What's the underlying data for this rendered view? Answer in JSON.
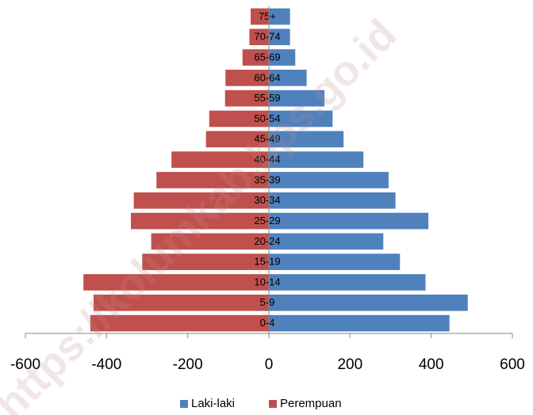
{
  "chart_data": {
    "type": "bar",
    "orientation": "horizontal",
    "stacked": true,
    "categories": [
      "0-4",
      "5-9",
      "10-14",
      "15-19",
      "20-24",
      "25-29",
      "30-34",
      "35-39",
      "40-44",
      "45-49",
      "50-54",
      "55-59",
      "60-64",
      "65-69",
      "70-74",
      "75+"
    ],
    "series": [
      {
        "name": "Laki-laki",
        "color": "#4f81bd",
        "values": [
          445,
          490,
          386,
          323,
          282,
          393,
          312,
          295,
          233,
          184,
          157,
          137,
          93,
          65,
          52,
          52
        ]
      },
      {
        "name": "Perempuan",
        "color": "#c0504d",
        "values": [
          -440,
          -432,
          -457,
          -312,
          -290,
          -340,
          -333,
          -277,
          -240,
          -155,
          -147,
          -108,
          -107,
          -65,
          -48,
          -45
        ]
      }
    ],
    "xlim": [
      -600,
      600
    ],
    "xticks": [
      -600,
      -400,
      -200,
      0,
      200,
      400,
      600
    ],
    "title": "",
    "xlabel": "",
    "ylabel": "",
    "grid": false,
    "legend_position": "bottom",
    "watermark": "https://kolumkab.bps.go.id"
  }
}
